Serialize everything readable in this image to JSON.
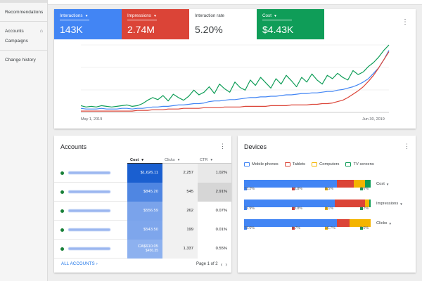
{
  "sidebar": {
    "items": [
      {
        "label": "Recommendations"
      },
      {
        "label": "Accounts"
      },
      {
        "label": "Campaigns"
      },
      {
        "label": "Change history"
      }
    ]
  },
  "performance": {
    "tiles": [
      {
        "label": "Interactions",
        "value": "143K",
        "color": "#4285f4"
      },
      {
        "label": "Impressions",
        "value": "2.74M",
        "color": "#db4437"
      },
      {
        "label": "Interaction rate",
        "value": "5.20%",
        "color": "#ffffff"
      },
      {
        "label": "Cost",
        "value": "$4.43K",
        "color": "#0f9d58"
      }
    ],
    "x_start": "May 1, 2019",
    "x_end": "Jun 30, 2019"
  },
  "chart_data": {
    "type": "line",
    "x_start": "May 1, 2019",
    "x_end": "Jun 30, 2019",
    "grid": true,
    "series": [
      {
        "color": "#0f9d58",
        "values": [
          10,
          8,
          9,
          8,
          10,
          9,
          8,
          9,
          10,
          11,
          9,
          10,
          13,
          18,
          22,
          19,
          25,
          17,
          27,
          22,
          18,
          24,
          33,
          26,
          30,
          38,
          28,
          42,
          35,
          30,
          45,
          37,
          33,
          48,
          40,
          52,
          44,
          36,
          50,
          42,
          55,
          47,
          38,
          52,
          45,
          57,
          48,
          42,
          55,
          50,
          58,
          52,
          48,
          62,
          56,
          60,
          68,
          74,
          82,
          92,
          100
        ]
      },
      {
        "color": "#4285f4",
        "values": [
          6,
          5,
          5,
          5,
          6,
          5,
          5,
          5,
          6,
          6,
          5,
          6,
          6,
          7,
          8,
          8,
          9,
          9,
          10,
          11,
          11,
          12,
          13,
          13,
          14,
          16,
          17,
          17,
          18,
          19,
          19,
          20,
          21,
          22,
          22,
          23,
          23,
          24,
          24,
          25,
          26,
          26,
          27,
          28,
          28,
          29,
          29,
          30,
          31,
          31,
          33,
          34,
          36,
          38,
          41,
          45,
          50,
          58,
          66,
          78,
          92
        ]
      },
      {
        "color": "#db4437",
        "values": [
          2,
          2,
          2,
          2,
          2,
          2,
          2,
          2,
          2,
          2,
          2,
          3,
          3,
          3,
          4,
          4,
          4,
          5,
          5,
          5,
          6,
          6,
          6,
          6,
          7,
          7,
          7,
          7,
          8,
          8,
          8,
          8,
          9,
          9,
          9,
          9,
          9,
          10,
          10,
          10,
          10,
          11,
          11,
          11,
          11,
          12,
          12,
          13,
          13,
          14,
          16,
          18,
          22,
          27,
          32,
          38,
          46,
          55,
          66,
          78,
          90
        ]
      }
    ]
  },
  "accounts": {
    "title": "Accounts",
    "headers": {
      "cost": "Cost",
      "clicks": "Clicks",
      "ctr": "CTR"
    },
    "rows": [
      {
        "cost": "$1,626.11",
        "cost_sub": "",
        "clicks": "2,257",
        "ctr": "1.02%",
        "cost_bg": "#1a5fd0",
        "ctr_bg": "#e8e8e8"
      },
      {
        "cost": "$845.20",
        "cost_sub": "",
        "clicks": "545",
        "ctr": "2.91%",
        "cost_bg": "#4f86e2",
        "ctr_bg": "#d6d6d6"
      },
      {
        "cost": "$556.59",
        "cost_sub": "",
        "clicks": "262",
        "ctr": "0.07%",
        "cost_bg": "#7aa3eb",
        "ctr_bg": "#ffffff"
      },
      {
        "cost": "$543.50",
        "cost_sub": "",
        "clicks": "199",
        "ctr": "0.01%",
        "cost_bg": "#7ea6ec",
        "ctr_bg": "#ffffff"
      },
      {
        "cost": "CA$610.05",
        "cost_sub": "$456.35",
        "clicks": "1,337",
        "ctr": "0.55%",
        "cost_bg": "#8db1ef",
        "ctr_bg": "#ffffff"
      }
    ],
    "footer_link": "ALL ACCOUNTS",
    "pagination": "Page 1 of 2"
  },
  "devices": {
    "title": "Devices",
    "legend": [
      {
        "label": "Mobile phones",
        "color": "#4285f4"
      },
      {
        "label": "Tablets",
        "color": "#db4437"
      },
      {
        "label": "Computers",
        "color": "#f4b400"
      },
      {
        "label": "TV screens",
        "color": "#0f9d58"
      }
    ],
    "bars": [
      {
        "metric": "Cost",
        "values": [
          73.2,
          13.8,
          8.5,
          4.6
        ],
        "labels": [
          "73.2%",
          "13.8%",
          "8.5%",
          "4.6%"
        ]
      },
      {
        "metric": "Impressions",
        "values": [
          71.9,
          23.8,
          3.1,
          1.2
        ],
        "labels": [
          "71.9%",
          "23.8%",
          "3.1%",
          "1.2%"
        ]
      },
      {
        "metric": "Clicks",
        "values": [
          73.6,
          9.7,
          16.7,
          0.0
        ],
        "labels": [
          "73.6%",
          "9.7%",
          "16.7%",
          "0.0%"
        ]
      }
    ]
  }
}
